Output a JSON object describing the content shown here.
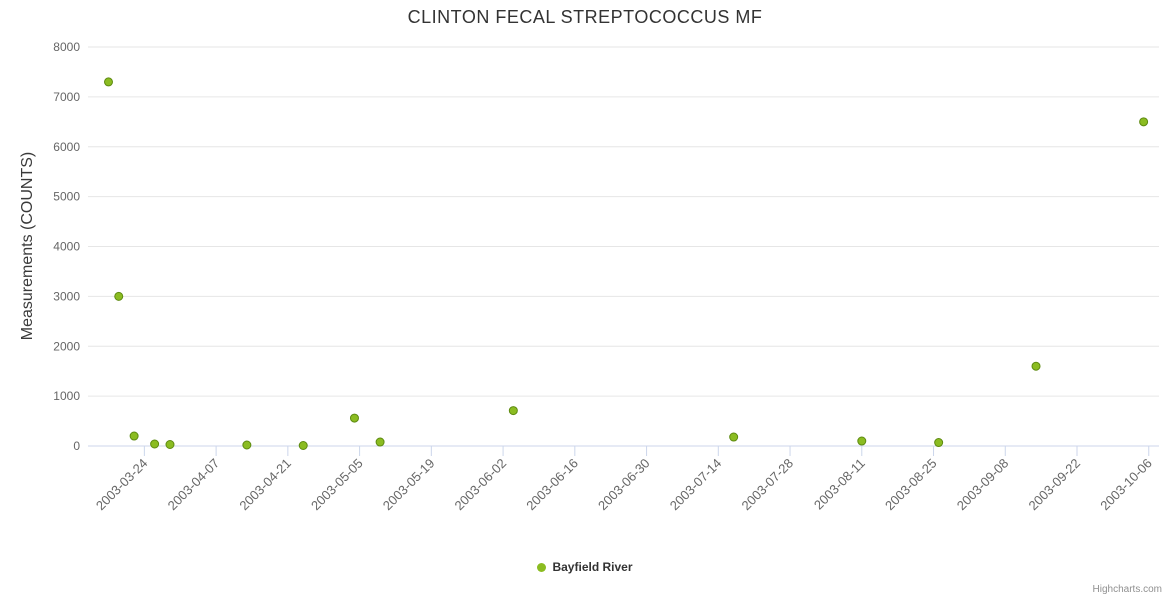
{
  "title": "CLINTON FECAL STREPTOCOCCUS MF",
  "credits": "Highcharts.com",
  "legend": {
    "position": "bottom-center",
    "items": [
      {
        "label": "Bayfield River",
        "color": "#8bbc21"
      }
    ]
  },
  "colors": {
    "point_fill": "#8bbc21",
    "point_stroke": "#5d8a10",
    "gridline": "#e6e6e6",
    "axis_line": "#ccd6eb",
    "tick_label": "#666666",
    "title_text": "#333333"
  },
  "chart_data": {
    "type": "scatter",
    "title": "CLINTON FECAL STREPTOCOCCUS MF",
    "xlabel": "",
    "ylabel": "Measurements (COUNTS)",
    "grid": "horizontal",
    "legend_position": "bottom-center",
    "x_axis": {
      "type": "datetime",
      "min": "2003-03-13",
      "max": "2003-10-08",
      "label_rotation": -45,
      "ticks": [
        "2003-03-24",
        "2003-04-07",
        "2003-04-21",
        "2003-05-05",
        "2003-05-19",
        "2003-06-02",
        "2003-06-16",
        "2003-06-30",
        "2003-07-14",
        "2003-07-28",
        "2003-08-11",
        "2003-08-25",
        "2003-09-08",
        "2003-09-22",
        "2003-10-06"
      ]
    },
    "y_axis": {
      "min": 0,
      "max": 8000,
      "tick_interval": 1000,
      "ticks": [
        0,
        1000,
        2000,
        3000,
        4000,
        5000,
        6000,
        7000,
        8000
      ]
    },
    "series": [
      {
        "name": "Bayfield River",
        "color": "#8bbc21",
        "marker": "circle",
        "points": [
          {
            "date": "2003-03-17",
            "value": 7300
          },
          {
            "date": "2003-03-19",
            "value": 3000
          },
          {
            "date": "2003-03-22",
            "value": 200
          },
          {
            "date": "2003-03-26",
            "value": 40
          },
          {
            "date": "2003-03-29",
            "value": 30
          },
          {
            "date": "2003-04-13",
            "value": 20
          },
          {
            "date": "2003-04-24",
            "value": 10
          },
          {
            "date": "2003-05-04",
            "value": 560
          },
          {
            "date": "2003-05-09",
            "value": 80
          },
          {
            "date": "2003-06-04",
            "value": 710
          },
          {
            "date": "2003-07-17",
            "value": 180
          },
          {
            "date": "2003-08-11",
            "value": 100
          },
          {
            "date": "2003-08-26",
            "value": 70
          },
          {
            "date": "2003-09-14",
            "value": 1600
          },
          {
            "date": "2003-10-05",
            "value": 6500
          }
        ]
      }
    ]
  }
}
